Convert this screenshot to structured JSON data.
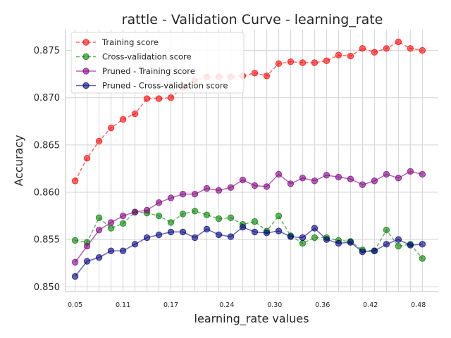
{
  "chart_data": {
    "type": "line",
    "title": "rattle - Validation Curve - learning_rate",
    "xlabel": "learning_rate values",
    "ylabel": "Accuracy",
    "ylim": [
      0.8495,
      0.8772
    ],
    "xlim": [
      0.038,
      0.505
    ],
    "grid": true,
    "legend_position": "top-left",
    "yticks": [
      "0.850",
      "0.855",
      "0.860",
      "0.865",
      "0.870",
      "0.875"
    ],
    "xtick_labels": [
      "0.05",
      "0.11",
      "0.17",
      "0.24",
      "0.30",
      "0.36",
      "0.42",
      "0.48"
    ],
    "xtick_values": [
      0.05,
      0.11,
      0.17,
      0.24,
      0.3,
      0.36,
      0.42,
      0.48
    ],
    "x": [
      0.05,
      0.065,
      0.08,
      0.095,
      0.11,
      0.125,
      0.14,
      0.155,
      0.17,
      0.185,
      0.2,
      0.215,
      0.23,
      0.245,
      0.26,
      0.275,
      0.29,
      0.305,
      0.32,
      0.335,
      0.35,
      0.365,
      0.38,
      0.395,
      0.41,
      0.425,
      0.44,
      0.455,
      0.47,
      0.485
    ],
    "series": [
      {
        "name": "Training score",
        "color": "#ff0000",
        "dashed": true,
        "values": [
          0.8612,
          0.8636,
          0.8654,
          0.8668,
          0.8677,
          0.8683,
          0.8699,
          0.8699,
          0.87,
          0.8711,
          0.8718,
          0.8722,
          0.8722,
          0.8722,
          0.8723,
          0.8726,
          0.8723,
          0.8736,
          0.8738,
          0.8737,
          0.8737,
          0.8739,
          0.8745,
          0.8744,
          0.8752,
          0.8748,
          0.8752,
          0.8759,
          0.8752,
          0.875
        ]
      },
      {
        "name": "Cross-validation score",
        "color": "#008000",
        "dashed": true,
        "values": [
          0.8549,
          0.8547,
          0.8573,
          0.8562,
          0.8567,
          0.8579,
          0.8578,
          0.8575,
          0.8568,
          0.8577,
          0.858,
          0.8576,
          0.8572,
          0.8573,
          0.8566,
          0.8569,
          0.8559,
          0.8575,
          0.8554,
          0.8546,
          0.8552,
          0.8552,
          0.8549,
          0.8548,
          0.8539,
          0.8538,
          0.856,
          0.8543,
          0.8545,
          0.853
        ]
      },
      {
        "name": "Pruned - Training score",
        "color": "#800080",
        "dashed": false,
        "values": [
          0.8526,
          0.8543,
          0.856,
          0.8568,
          0.8575,
          0.8579,
          0.8581,
          0.8589,
          0.8594,
          0.8598,
          0.8598,
          0.8604,
          0.8602,
          0.8605,
          0.8613,
          0.8607,
          0.8606,
          0.8619,
          0.8609,
          0.8615,
          0.8612,
          0.8618,
          0.8616,
          0.8614,
          0.8608,
          0.8612,
          0.8619,
          0.8615,
          0.8622,
          0.8619
        ]
      },
      {
        "name": "Pruned - Cross-validation score",
        "color": "#000080",
        "dashed": false,
        "values": [
          0.8511,
          0.8527,
          0.8531,
          0.8538,
          0.8538,
          0.8545,
          0.8552,
          0.8555,
          0.8558,
          0.8558,
          0.8552,
          0.8561,
          0.8555,
          0.8553,
          0.8563,
          0.8558,
          0.8557,
          0.8559,
          0.8553,
          0.8552,
          0.8562,
          0.855,
          0.8546,
          0.8547,
          0.8537,
          0.8538,
          0.8545,
          0.855,
          0.8544,
          0.8545
        ]
      }
    ]
  }
}
